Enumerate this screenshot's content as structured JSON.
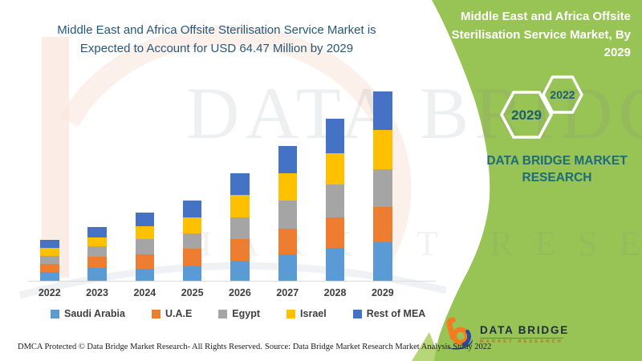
{
  "colors": {
    "panel_green": "#98C355",
    "panel_green_light": "#B7D678",
    "title_blue": "#27587A",
    "brand_teal": "#1E6B7D",
    "hex_number": "#1D5F70",
    "axis_text": "#3F3F3F",
    "logo_orange": "#F47B20",
    "logo_blue": "#2A4B9B",
    "logo_navy": "#1F2A44"
  },
  "header": {
    "title": "Middle East and Africa Offsite Sterilisation Service Market is\nExpected to Account for USD 64.47 Million by 2029"
  },
  "side_panel": {
    "title": "Middle East and Africa Offsite\nSterilisation Service  Market, By\n2029",
    "hexagons": [
      {
        "label": "2029"
      },
      {
        "label": "2022"
      }
    ],
    "brand_text": "DATA BRIDGE MARKET\nRESEARCH",
    "logo": {
      "name": "DATA BRIDGE",
      "subtitle": "MARKET RESEARCH"
    }
  },
  "chart_data": {
    "type": "bar",
    "stacked": true,
    "title": "Middle East and Africa Offsite Sterilisation Service Market, USD Million",
    "xlabel": "",
    "ylabel": "",
    "unit": "USD Million",
    "value_note": "Series values estimated from bar heights; 2029 total stated as USD 64.47 Million",
    "grid": false,
    "legend_position": "bottom",
    "ylim": [
      0,
      70
    ],
    "categories": [
      "2022",
      "2023",
      "2024",
      "2025",
      "2026",
      "2027",
      "2028",
      "2029"
    ],
    "series": [
      {
        "name": "Saudi Arabia",
        "color": "#5B9BD5",
        "values": [
          2.9,
          4.5,
          4.0,
          5.0,
          6.9,
          9.0,
          11.2,
          13.2
        ]
      },
      {
        "name": "U.A.E",
        "color": "#ED7D31",
        "values": [
          2.8,
          3.8,
          5.0,
          6.0,
          7.3,
          8.7,
          10.5,
          12.0
        ]
      },
      {
        "name": "Egypt",
        "color": "#A5A5A5",
        "values": [
          2.7,
          3.4,
          5.2,
          5.1,
          7.5,
          9.6,
          11.0,
          12.9
        ]
      },
      {
        "name": "Israel",
        "color": "#FFC000",
        "values": [
          2.7,
          3.2,
          4.4,
          5.6,
          7.4,
          9.4,
          10.7,
          13.2
        ]
      },
      {
        "name": "Rest of MEA",
        "color": "#4472C4",
        "values": [
          2.8,
          3.3,
          4.6,
          5.6,
          7.5,
          9.2,
          11.8,
          13.17
        ]
      }
    ],
    "totals_by_year": [
      13.9,
      18.2,
      23.2,
      27.3,
      36.6,
      45.9,
      55.2,
      64.47
    ]
  },
  "watermark": {
    "line1": "DATA BRIDGE",
    "line2": "MARKET RESEARCH"
  },
  "footer": {
    "left": "DMCA Protected © Data Bridge Market Research- All Rights Reserved.",
    "source": "Source: Data Bridge Market Research Market Analysis Study 2022"
  }
}
